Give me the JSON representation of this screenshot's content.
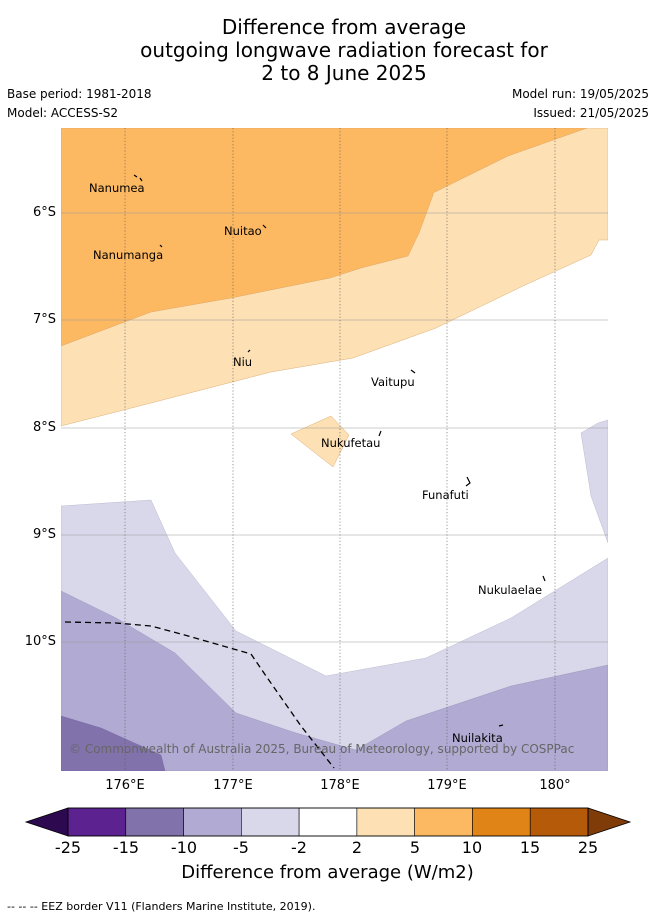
{
  "title": {
    "line1": "Difference from average",
    "line2": "outgoing longwave radiation forecast for",
    "line3": "2 to 8 June 2025"
  },
  "meta": {
    "base_period": "Base period: 1981-2018",
    "model": "Model: ACCESS-S2",
    "model_run": "Model run: 19/05/2025",
    "issued": "Issued: 21/05/2025"
  },
  "axes": {
    "latitude_labels": [
      "6°S",
      "7°S",
      "8°S",
      "9°S",
      "10°S"
    ],
    "longitude_labels": [
      "176°E",
      "177°E",
      "178°E",
      "179°E",
      "180°"
    ]
  },
  "places": [
    "Nanumea",
    "Nuitao",
    "Nanumanga",
    "Niu",
    "Vaitupu",
    "Nukufetau",
    "Funafuti",
    "Nukulaelae",
    "Nuilakita"
  ],
  "copyright": "© Commonwealth of Australia 2025, Bureau of Meteorology, supported by COSPPac",
  "colorbar": {
    "ticks": [
      "-25",
      "-15",
      "-10",
      "-5",
      "-2",
      "2",
      "5",
      "10",
      "15",
      "25"
    ],
    "colors": [
      "#2d0a4f",
      "#5b2290",
      "#8272ac",
      "#b1aad2",
      "#d8d8ea",
      "#ffffff",
      "#fde0b4",
      "#fdb862",
      "#e08418",
      "#b45a08",
      "#7f3b08"
    ],
    "label": "Difference from average (W/m2)"
  },
  "eez_legend": "-- -- -- EEZ border V11 (Flanders Marine Institute, 2019)."
}
